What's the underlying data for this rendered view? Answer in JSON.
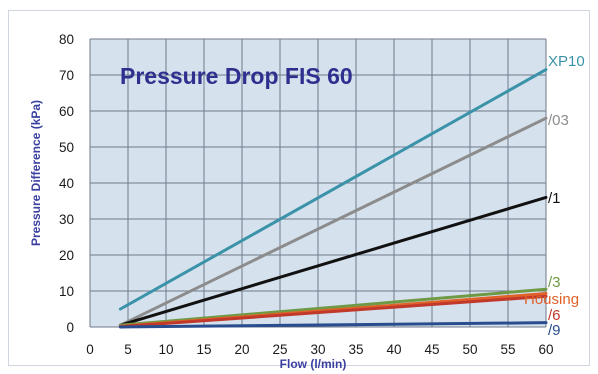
{
  "chart_data": {
    "type": "line",
    "title": "Pressure Drop FIS 60",
    "xlabel": "Flow (l/min)",
    "ylabel": "Pressure Difference (kPa)",
    "xlim": [
      0,
      60
    ],
    "ylim": [
      0,
      80
    ],
    "x_ticks": [
      0,
      5,
      10,
      15,
      20,
      25,
      30,
      35,
      40,
      45,
      50,
      55,
      60
    ],
    "y_ticks": [
      0,
      10,
      20,
      30,
      40,
      50,
      60,
      70,
      80
    ],
    "grid": true,
    "plot_background": "#d6e1ee",
    "grid_color": "#6f7a8a",
    "series": [
      {
        "name": "XP10",
        "x": [
          4,
          60
        ],
        "y": [
          5,
          71.5
        ],
        "color": "#3a93a8"
      },
      {
        "name": "/03",
        "x": [
          4,
          60
        ],
        "y": [
          0.5,
          58
        ],
        "color": "#8c8c8c"
      },
      {
        "name": "/1",
        "x": [
          4,
          60
        ],
        "y": [
          0.5,
          36
        ],
        "color": "#111111"
      },
      {
        "name": "/3",
        "x": [
          4,
          60
        ],
        "y": [
          0.5,
          10.5
        ],
        "color": "#6f9a45"
      },
      {
        "name": "Housing",
        "x": [
          4,
          60
        ],
        "y": [
          0.2,
          9.3
        ],
        "color": "#e0622a"
      },
      {
        "name": "/6",
        "x": [
          4,
          60
        ],
        "y": [
          0.1,
          8.5
        ],
        "color": "#c0392b"
      },
      {
        "name": "/9",
        "x": [
          4,
          60
        ],
        "y": [
          0,
          1.2
        ],
        "color": "#2a4d8f"
      }
    ]
  }
}
